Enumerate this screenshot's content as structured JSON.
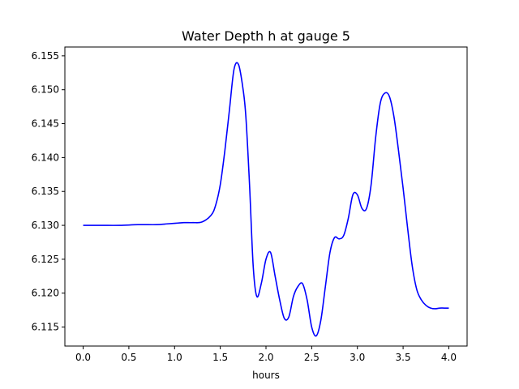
{
  "chart_data": {
    "type": "line",
    "title": "Water Depth h at gauge 5",
    "xlabel": "hours",
    "ylabel": "",
    "xlim": [
      -0.2,
      4.2
    ],
    "ylim": [
      6.1122,
      6.1563
    ],
    "xticks": [
      "0.0",
      "0.5",
      "1.0",
      "1.5",
      "2.0",
      "2.5",
      "3.0",
      "3.5",
      "4.0"
    ],
    "yticks": [
      "6.115",
      "6.120",
      "6.125",
      "6.130",
      "6.135",
      "6.140",
      "6.145",
      "6.150",
      "6.155"
    ],
    "grid": false,
    "legend": "none",
    "series": [
      {
        "color": "#0000ff",
        "x": [
          0.0,
          0.2,
          0.4,
          0.6,
          0.8,
          0.9,
          1.0,
          1.1,
          1.2,
          1.3,
          1.4,
          1.45,
          1.5,
          1.55,
          1.6,
          1.65,
          1.7,
          1.75,
          1.78,
          1.82,
          1.86,
          1.9,
          1.95,
          2.0,
          2.05,
          2.1,
          2.15,
          2.2,
          2.25,
          2.3,
          2.35,
          2.4,
          2.45,
          2.5,
          2.55,
          2.6,
          2.65,
          2.7,
          2.75,
          2.8,
          2.85,
          2.9,
          2.95,
          3.0,
          3.05,
          3.1,
          3.15,
          3.2,
          3.25,
          3.3,
          3.35,
          3.4,
          3.45,
          3.5,
          3.55,
          3.6,
          3.65,
          3.7,
          3.75,
          3.8,
          3.85,
          3.9,
          3.95,
          4.0
        ],
        "y": [
          6.13,
          6.13,
          6.13,
          6.1301,
          6.1301,
          6.1302,
          6.1303,
          6.1304,
          6.1304,
          6.1305,
          6.1315,
          6.133,
          6.136,
          6.141,
          6.147,
          6.153,
          6.1537,
          6.15,
          6.146,
          6.136,
          6.124,
          6.1195,
          6.1215,
          6.125,
          6.126,
          6.1225,
          6.119,
          6.1163,
          6.1165,
          6.1195,
          6.121,
          6.1214,
          6.119,
          6.115,
          6.1137,
          6.116,
          6.121,
          6.126,
          6.1282,
          6.128,
          6.1285,
          6.131,
          6.1345,
          6.1345,
          6.1325,
          6.1325,
          6.136,
          6.143,
          6.148,
          6.1495,
          6.149,
          6.146,
          6.141,
          6.1355,
          6.1295,
          6.124,
          6.1205,
          6.119,
          6.1182,
          6.1178,
          6.1177,
          6.1178,
          6.1178,
          6.1178
        ]
      }
    ]
  }
}
